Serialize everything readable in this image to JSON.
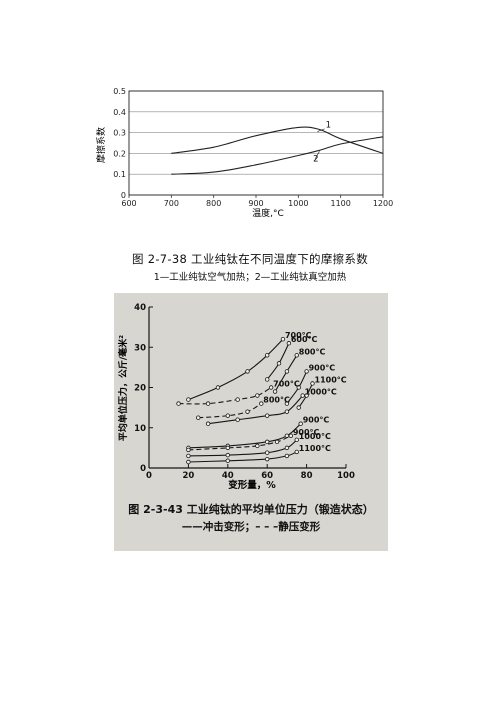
{
  "figure1": {
    "caption": "图 2-7-38 工业纯钛在不同温度下的摩擦系数",
    "subcaption": "1—工业纯钛空气加热；2—工业纯钛真空加热",
    "chart_data": {
      "type": "line",
      "xlabel": "温度,°C",
      "ylabel": "摩擦系数",
      "xlim": [
        600,
        1200
      ],
      "ylim": [
        0,
        0.5
      ],
      "x_ticks": [
        "600",
        "700",
        "800",
        "900",
        "1000",
        "1100",
        "1200"
      ],
      "y_ticks": [
        "0",
        "0.1",
        "0.2",
        "0.3",
        "0.4",
        "0.5"
      ],
      "grid": true,
      "series": [
        {
          "name": "1",
          "points": [
            [
              700,
              0.2
            ],
            [
              800,
              0.23
            ],
            [
              900,
              0.285
            ],
            [
              1000,
              0.325
            ],
            [
              1050,
              0.315
            ],
            [
              1100,
              0.27
            ],
            [
              1200,
              0.2
            ]
          ]
        },
        {
          "name": "2",
          "points": [
            [
              700,
              0.1
            ],
            [
              800,
              0.11
            ],
            [
              900,
              0.145
            ],
            [
              1000,
              0.19
            ],
            [
              1050,
              0.215
            ],
            [
              1100,
              0.245
            ],
            [
              1200,
              0.28
            ]
          ]
        }
      ],
      "series_color": "#222222"
    }
  },
  "figure2": {
    "caption": "图 2-3-43 工业纯钛的平均单位压力（锻造状态）",
    "subcaption": "——冲击变形；– – –静压变形",
    "chart_data": {
      "type": "line",
      "xlabel": "变形量，%",
      "ylabel": "平均单位压力，公斤/毫米²",
      "xlim": [
        0,
        100
      ],
      "ylim": [
        0,
        40
      ],
      "x_ticks": [
        "0",
        "20",
        "40",
        "60",
        "80",
        "100"
      ],
      "y_ticks": [
        "0",
        "10",
        "20",
        "30",
        "40"
      ],
      "grid": false,
      "series": [
        {
          "name": "700°C",
          "style": "solid",
          "points": [
            [
              20,
              17
            ],
            [
              35,
              20
            ],
            [
              50,
              24
            ],
            [
              60,
              28
            ],
            [
              68,
              32
            ]
          ]
        },
        {
          "name": "600°C",
          "style": "solid",
          "points": [
            [
              60,
              22
            ],
            [
              66,
              26
            ],
            [
              71,
              31
            ]
          ]
        },
        {
          "name": "800°C",
          "style": "solid",
          "points": [
            [
              64,
              19
            ],
            [
              70,
              24
            ],
            [
              75,
              28
            ]
          ]
        },
        {
          "name": "900°C",
          "style": "solid",
          "points": [
            [
              70,
              16
            ],
            [
              76,
              20
            ],
            [
              80,
              24
            ]
          ]
        },
        {
          "name": "1100°C",
          "style": "solid",
          "points": [
            [
              76,
              15
            ],
            [
              80,
              18
            ],
            [
              83,
              21
            ]
          ]
        },
        {
          "name": "700°C",
          "style": "dashed",
          "points": [
            [
              15,
              16
            ],
            [
              30,
              16
            ],
            [
              45,
              17
            ],
            [
              55,
              18
            ],
            [
              62,
              20
            ]
          ]
        },
        {
          "name": "800°C",
          "style": "dashed",
          "points": [
            [
              25,
              12.5
            ],
            [
              40,
              13
            ],
            [
              50,
              14
            ],
            [
              57,
              16
            ]
          ]
        },
        {
          "name": "1000°C",
          "style": "solid",
          "points": [
            [
              30,
              11
            ],
            [
              45,
              12
            ],
            [
              60,
              13
            ],
            [
              70,
              14
            ],
            [
              78,
              18
            ]
          ]
        },
        {
          "name": "900°C",
          "style": "solid",
          "points": [
            [
              20,
              5
            ],
            [
              40,
              5.5
            ],
            [
              60,
              6.5
            ],
            [
              70,
              8
            ],
            [
              77,
              11
            ]
          ]
        },
        {
          "name": "900°C",
          "style": "dashed",
          "points": [
            [
              20,
              4.5
            ],
            [
              40,
              5
            ],
            [
              55,
              5.5
            ],
            [
              65,
              6.5
            ],
            [
              72,
              8
            ]
          ]
        },
        {
          "name": "1000°C",
          "style": "solid",
          "points": [
            [
              20,
              3
            ],
            [
              40,
              3.2
            ],
            [
              60,
              3.8
            ],
            [
              70,
              5
            ],
            [
              75,
              7
            ]
          ]
        },
        {
          "name": "1100°C",
          "style": "solid",
          "points": [
            [
              20,
              1.5
            ],
            [
              40,
              1.8
            ],
            [
              60,
              2.2
            ],
            [
              70,
              3
            ],
            [
              75,
              4
            ]
          ]
        }
      ],
      "series_color": "#161616"
    }
  }
}
